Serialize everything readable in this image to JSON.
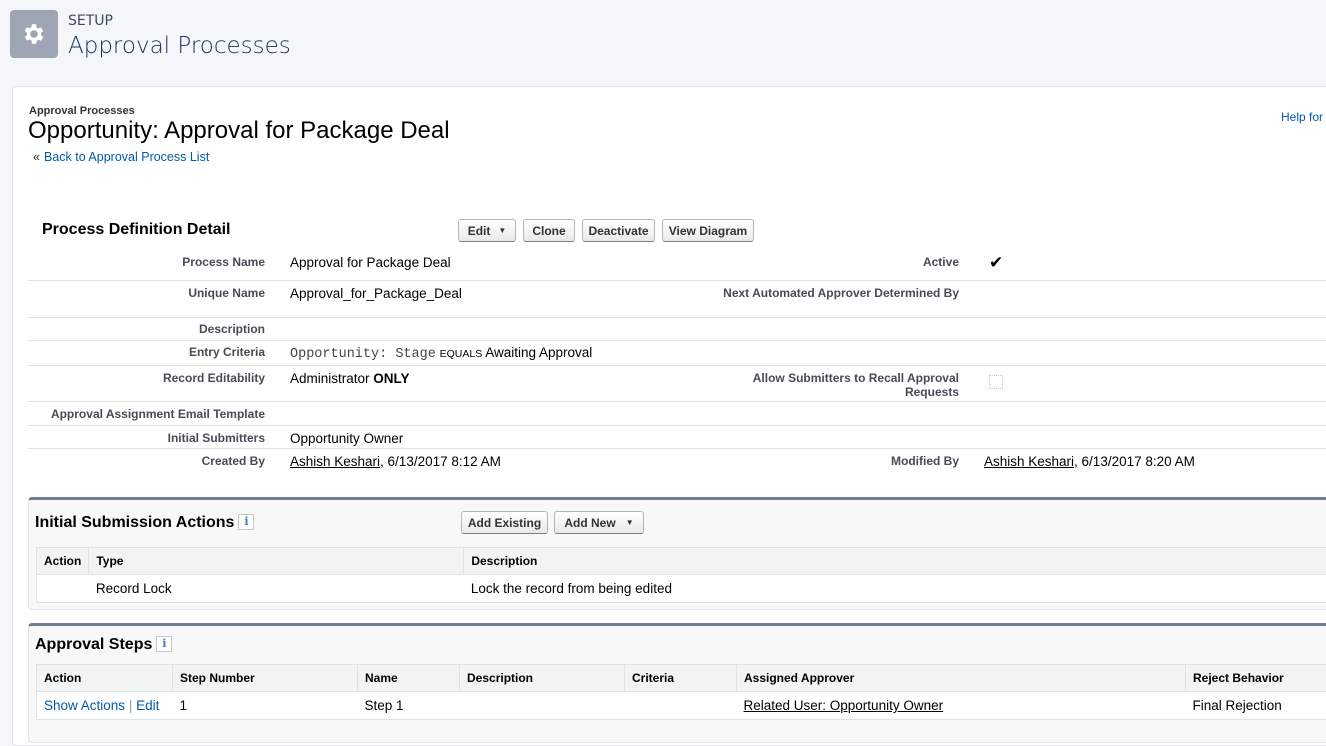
{
  "header": {
    "section": "SETUP",
    "title": "Approval Processes",
    "icon": "gear-icon"
  },
  "record": {
    "breadcrumb": "Approval Processes",
    "title": "Opportunity: Approval for Package Deal",
    "back_link": "Back to Approval Process List",
    "back_prefix": "«",
    "help_link": "Help for"
  },
  "detail": {
    "heading": "Process Definition Detail",
    "buttons": {
      "edit": "Edit",
      "clone": "Clone",
      "deactivate": "Deactivate",
      "view_diagram": "View Diagram"
    },
    "fields": {
      "process_name": {
        "label": "Process Name",
        "value": "Approval for Package Deal"
      },
      "active": {
        "label": "Active",
        "checked": true
      },
      "unique_name": {
        "label": "Unique Name",
        "value": "Approval_for_Package_Deal"
      },
      "next_approver": {
        "label": "Next Automated Approver Determined By",
        "value": ""
      },
      "description": {
        "label": "Description",
        "value": ""
      },
      "entry_criteria": {
        "label": "Entry Criteria",
        "field": "Opportunity: Stage",
        "operator": "EQUALS",
        "value": "Awaiting Approval"
      },
      "record_editability": {
        "label": "Record Editability",
        "value": "Administrator",
        "emphasis": "ONLY"
      },
      "allow_recall": {
        "label": "Allow Submitters to Recall Approval Requests",
        "checked": false
      },
      "email_template": {
        "label": "Approval Assignment Email Template",
        "value": ""
      },
      "initial_submitters": {
        "label": "Initial Submitters",
        "value": "Opportunity Owner"
      },
      "created_by": {
        "label": "Created By",
        "user": "Ashish Keshari",
        "date": ", 6/13/2017 8:12 AM"
      },
      "modified_by": {
        "label": "Modified By",
        "user": "Ashish Keshari",
        "date": ", 6/13/2017 8:20 AM"
      }
    }
  },
  "initial_submission": {
    "heading": "Initial Submission Actions",
    "info": "i",
    "buttons": {
      "add_existing": "Add Existing",
      "add_new": "Add New"
    },
    "columns": [
      "Action",
      "Type",
      "Description"
    ],
    "rows": [
      {
        "action": "",
        "type": "Record Lock",
        "description": "Lock the record from being edited"
      }
    ]
  },
  "approval_steps": {
    "heading": "Approval Steps",
    "info": "i",
    "columns": [
      "Action",
      "Step Number",
      "Name",
      "Description",
      "Criteria",
      "Assigned Approver",
      "Reject Behavior"
    ],
    "rows": [
      {
        "show_actions": "Show Actions",
        "sep": "|",
        "edit": "Edit",
        "step_number": "1",
        "name": "Step 1",
        "description": "",
        "criteria": "",
        "approver": "Related User: Opportunity Owner",
        "reject": "Final Rejection"
      }
    ]
  }
}
